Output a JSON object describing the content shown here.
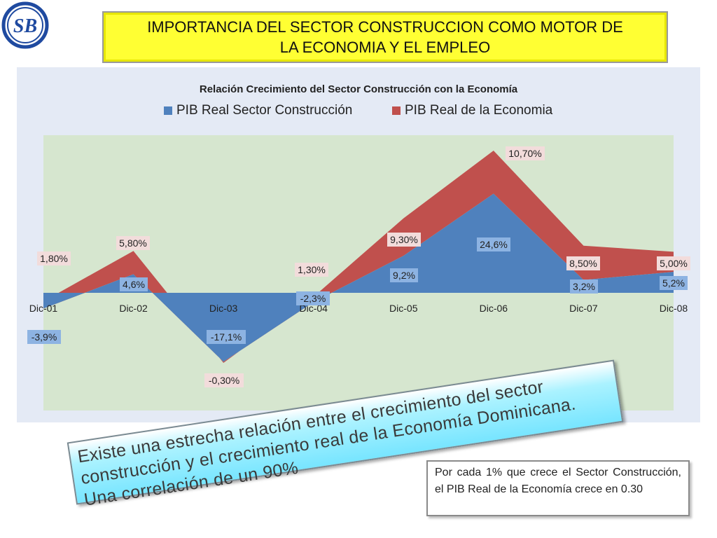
{
  "logo": {
    "text": "SB",
    "icon": "sb-logo-icon",
    "color": "#1f4aa0"
  },
  "header": {
    "title": "IMPORTANCIA DEL SECTOR CONSTRUCCION COMO MOTOR DE LA ECONOMIA Y EL EMPLEO"
  },
  "chart_data": {
    "type": "area",
    "title": "Relación Crecimiento del Sector Construcción con la Economía",
    "categories": [
      "Dic-01",
      "Dic-02",
      "Dic-03",
      "Dic-04",
      "Dic-05",
      "Dic-06",
      "Dic-07",
      "Dic-08"
    ],
    "series": [
      {
        "name": "PIB Real Sector Construcción",
        "color": "#4f81bd",
        "values": [
          -3.9,
          4.6,
          -17.1,
          -2.3,
          9.2,
          24.6,
          3.2,
          5.2
        ],
        "labels": [
          "-3,9%",
          "4,6%",
          "-17,1%",
          "-2,3%",
          "9,2%",
          "24,6%",
          "3,2%",
          "5,2%"
        ]
      },
      {
        "name": "PIB Real de la Economia",
        "color": "#c0504d",
        "values": [
          1.8,
          5.8,
          -0.3,
          1.3,
          9.3,
          10.7,
          8.5,
          5.0
        ],
        "labels": [
          "1,80%",
          "5,80%",
          "-0,30%",
          "1,30%",
          "9,30%",
          "10,70%",
          "8,50%",
          "5,00%"
        ]
      }
    ],
    "plot_background": "#d6e6cf",
    "legend": "top",
    "grid": false
  },
  "callout": {
    "text": "Existe una estrecha relación entre el crecimiento del sector construcción y el crecimiento real de la Economía Dominicana. Una correlación de un 90%"
  },
  "note": {
    "text": "Por cada 1% que crece el Sector Construcción, el PIB Real de la Economía crece en 0.30"
  }
}
